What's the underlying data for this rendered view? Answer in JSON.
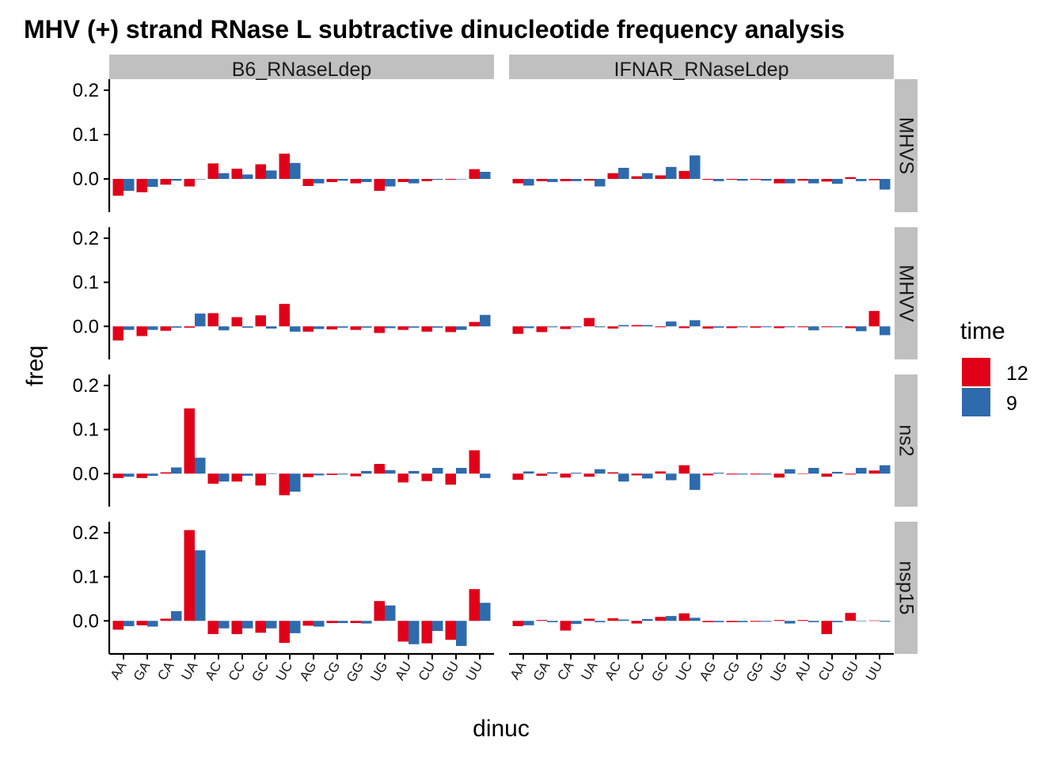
{
  "chart_data": {
    "type": "bar",
    "title": "MHV (+) strand RNase L subtractive dinucleotide frequency analysis",
    "xlabel": "dinuc",
    "ylabel": "freq",
    "categories": [
      "AA",
      "GA",
      "CA",
      "UA",
      "AC",
      "CC",
      "GC",
      "UC",
      "AG",
      "CG",
      "GG",
      "UG",
      "AU",
      "CU",
      "GU",
      "UU"
    ],
    "y_ticks": [
      0.0,
      0.1,
      0.2
    ],
    "y_tick_labels": [
      "0.0",
      "0.1",
      "0.2"
    ],
    "ylim": [
      -0.075,
      0.225
    ],
    "facet_cols": [
      "B6_RNaseLdep",
      "IFNAR_RNaseLdep"
    ],
    "facet_rows": [
      "MHVS",
      "MHVV",
      "ns2",
      "nsp15"
    ],
    "legend": {
      "title": "time",
      "position": "right",
      "entries": [
        {
          "label": "12",
          "color": "#E0001A"
        },
        {
          "label": "9",
          "color": "#2E6BAD"
        }
      ]
    },
    "series_order": [
      "12",
      "9"
    ],
    "panels": [
      {
        "row": "MHVS",
        "col": "B6_RNaseLdep",
        "series": [
          {
            "name": "12",
            "values": [
              -0.038,
              -0.03,
              -0.013,
              -0.017,
              0.035,
              0.023,
              0.033,
              0.057,
              -0.016,
              -0.007,
              -0.01,
              -0.027,
              -0.007,
              -0.005,
              -0.002,
              0.022
            ]
          },
          {
            "name": "9",
            "values": [
              -0.027,
              -0.018,
              -0.004,
              0.0,
              0.013,
              0.01,
              0.019,
              0.036,
              -0.01,
              -0.004,
              -0.007,
              -0.017,
              -0.01,
              -0.002,
              -0.001,
              0.016
            ]
          }
        ]
      },
      {
        "row": "MHVS",
        "col": "IFNAR_RNaseLdep",
        "series": [
          {
            "name": "12",
            "values": [
              -0.01,
              -0.005,
              -0.005,
              -0.004,
              0.013,
              0.006,
              0.008,
              0.018,
              -0.002,
              -0.002,
              -0.002,
              -0.01,
              -0.004,
              -0.006,
              0.004,
              -0.003
            ]
          },
          {
            "name": "9",
            "values": [
              -0.015,
              -0.007,
              -0.005,
              -0.017,
              0.025,
              0.013,
              0.027,
              0.053,
              -0.005,
              -0.004,
              -0.004,
              -0.01,
              -0.01,
              -0.011,
              -0.005,
              -0.024
            ]
          }
        ]
      },
      {
        "row": "MHVV",
        "col": "B6_RNaseLdep",
        "series": [
          {
            "name": "12",
            "values": [
              -0.032,
              -0.022,
              -0.01,
              -0.003,
              0.03,
              0.021,
              0.025,
              0.051,
              -0.012,
              -0.007,
              -0.008,
              -0.015,
              -0.008,
              -0.012,
              -0.013,
              0.01
            ]
          },
          {
            "name": "9",
            "values": [
              -0.008,
              -0.008,
              -0.003,
              0.029,
              -0.009,
              -0.003,
              -0.005,
              -0.012,
              -0.006,
              -0.003,
              -0.003,
              -0.004,
              -0.003,
              -0.003,
              -0.008,
              0.026
            ]
          }
        ]
      },
      {
        "row": "MHVV",
        "col": "IFNAR_RNaseLdep",
        "series": [
          {
            "name": "12",
            "values": [
              -0.017,
              -0.013,
              -0.006,
              0.019,
              -0.005,
              0.003,
              -0.002,
              -0.004,
              -0.005,
              -0.004,
              -0.003,
              -0.004,
              -0.002,
              -0.002,
              -0.004,
              0.035
            ]
          },
          {
            "name": "9",
            "values": [
              -0.004,
              -0.002,
              -0.002,
              -0.002,
              0.003,
              0.003,
              0.011,
              0.014,
              -0.003,
              -0.002,
              -0.002,
              -0.002,
              -0.009,
              -0.002,
              -0.011,
              -0.02
            ]
          }
        ]
      },
      {
        "row": "ns2",
        "col": "B6_RNaseLdep",
        "series": [
          {
            "name": "12",
            "values": [
              -0.01,
              -0.01,
              0.003,
              0.148,
              -0.023,
              -0.018,
              -0.027,
              -0.049,
              -0.008,
              -0.003,
              -0.006,
              0.022,
              -0.02,
              -0.017,
              -0.025,
              0.053
            ]
          },
          {
            "name": "9",
            "values": [
              -0.007,
              -0.005,
              0.014,
              0.036,
              -0.018,
              -0.005,
              -0.001,
              -0.041,
              -0.004,
              -0.002,
              0.006,
              0.008,
              0.006,
              0.013,
              0.013,
              -0.01
            ]
          }
        ]
      },
      {
        "row": "ns2",
        "col": "IFNAR_RNaseLdep",
        "series": [
          {
            "name": "12",
            "values": [
              -0.014,
              -0.005,
              -0.009,
              -0.007,
              0.003,
              -0.004,
              0.005,
              0.019,
              -0.004,
              -0.002,
              -0.002,
              -0.009,
              -0.001,
              -0.007,
              -0.002,
              0.007
            ]
          },
          {
            "name": "9",
            "values": [
              0.005,
              0.003,
              0.002,
              0.01,
              -0.018,
              -0.011,
              -0.015,
              -0.037,
              0.002,
              -0.002,
              -0.002,
              0.01,
              0.013,
              0.004,
              0.013,
              0.019
            ]
          }
        ]
      },
      {
        "row": "nsp15",
        "col": "B6_RNaseLdep",
        "series": [
          {
            "name": "12",
            "values": [
              -0.02,
              -0.01,
              0.005,
              0.206,
              -0.03,
              -0.03,
              -0.027,
              -0.05,
              -0.011,
              -0.005,
              -0.005,
              0.045,
              -0.047,
              -0.051,
              -0.043,
              0.072
            ]
          },
          {
            "name": "9",
            "values": [
              -0.012,
              -0.013,
              0.022,
              0.16,
              -0.017,
              -0.017,
              -0.017,
              -0.028,
              -0.013,
              -0.005,
              -0.006,
              0.035,
              -0.053,
              -0.023,
              -0.057,
              0.041
            ]
          }
        ]
      },
      {
        "row": "nsp15",
        "col": "IFNAR_RNaseLdep",
        "series": [
          {
            "name": "12",
            "values": [
              -0.012,
              0.002,
              -0.022,
              0.005,
              0.006,
              -0.006,
              0.009,
              0.017,
              -0.003,
              -0.003,
              -0.002,
              0.002,
              0.002,
              -0.03,
              0.018,
              0.001
            ]
          },
          {
            "name": "9",
            "values": [
              -0.01,
              -0.003,
              -0.007,
              -0.003,
              0.003,
              0.004,
              0.011,
              0.007,
              -0.003,
              -0.003,
              -0.002,
              -0.006,
              -0.003,
              -0.003,
              -0.001,
              -0.002
            ]
          }
        ]
      }
    ]
  }
}
